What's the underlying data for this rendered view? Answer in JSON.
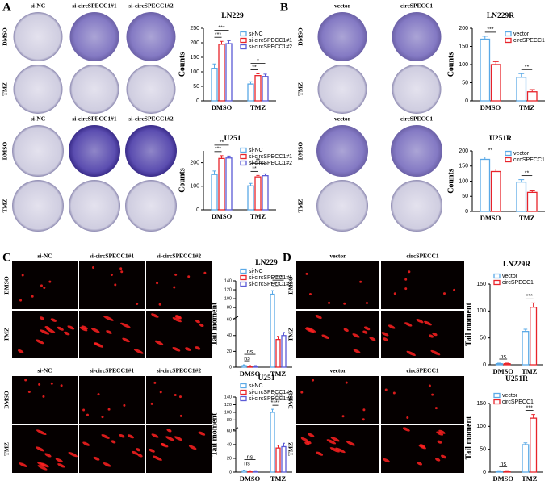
{
  "panels": [
    {
      "label": "A",
      "grids": [
        {
          "columns": [
            "si-NC",
            "si-circSPECC1#1",
            "si-circSPECC1#2"
          ],
          "rows": [
            "DMSO",
            "TMZ"
          ]
        },
        {
          "columns": [
            "si-NC",
            "si-circSPECC1#1",
            "si-circSPECC1#2"
          ],
          "rows": [
            "DMSO",
            "TMZ"
          ]
        }
      ]
    },
    {
      "label": "B",
      "grids": [
        {
          "columns": [
            "vector",
            "circSPECC1"
          ],
          "rows": [
            "DMSO",
            "TMZ"
          ]
        },
        {
          "columns": [
            "vector",
            "circSPECC1"
          ],
          "rows": [
            "DMSO",
            "TMZ"
          ]
        }
      ]
    },
    {
      "label": "C",
      "grids": [
        {
          "columns": [
            "si-NC",
            "si-circSPECC1#1",
            "si-circSPECC1#2"
          ],
          "rows": [
            "DMSO",
            "TMZ"
          ]
        },
        {
          "columns": [
            "si-NC",
            "si-circSPECC1#1",
            "si-circSPECC1#2"
          ],
          "rows": [
            "DMSO",
            "TMZ"
          ]
        }
      ]
    },
    {
      "label": "D",
      "grids": [
        {
          "columns": [
            "vector",
            "circSPECC1"
          ],
          "rows": [
            "DMSO",
            "TMZ"
          ]
        },
        {
          "columns": [
            "vector",
            "circSPECC1"
          ],
          "rows": [
            "DMSO",
            "TMZ"
          ]
        }
      ]
    }
  ],
  "chart_data": [
    {
      "type": "bar",
      "title": "LN229",
      "ylabel": "Counts",
      "categories": [
        "DMSO",
        "TMZ"
      ],
      "series": [
        {
          "name": "si-NC",
          "color": "#5aa9e6",
          "values": [
            112,
            58
          ],
          "errors": [
            15,
            8
          ]
        },
        {
          "name": "si-circSPECC1#1",
          "color": "#e8232a",
          "values": [
            195,
            87
          ],
          "errors": [
            10,
            6
          ]
        },
        {
          "name": "si-circSPECC1#2",
          "color": "#5b5bd6",
          "values": [
            197,
            84
          ],
          "errors": [
            10,
            8
          ]
        }
      ],
      "ylim": [
        0,
        250
      ],
      "yticks": [
        0,
        50,
        100,
        150,
        200,
        250
      ],
      "annotations": [
        "***",
        "***",
        "**",
        "*"
      ]
    },
    {
      "type": "bar",
      "title": "U251",
      "ylabel": "Counts",
      "categories": [
        "DMSO",
        "TMZ"
      ],
      "series": [
        {
          "name": "si-NC",
          "color": "#5aa9e6",
          "values": [
            150,
            102
          ],
          "errors": [
            15,
            10
          ]
        },
        {
          "name": "si-circSPECC1#1",
          "color": "#e8232a",
          "values": [
            218,
            140
          ],
          "errors": [
            12,
            6
          ]
        },
        {
          "name": "si-circSPECC1#2",
          "color": "#5b5bd6",
          "values": [
            220,
            145
          ],
          "errors": [
            8,
            8
          ]
        }
      ],
      "ylim": [
        0,
        250
      ],
      "yticks": [
        0,
        100,
        200
      ],
      "annotations": [
        "***",
        "**",
        "**",
        "**"
      ]
    },
    {
      "type": "bar",
      "title": "LN229R",
      "ylabel": "Counts",
      "categories": [
        "DMSO",
        "TMZ"
      ],
      "series": [
        {
          "name": "vector",
          "color": "#5aa9e6",
          "values": [
            170,
            65
          ],
          "errors": [
            8,
            10
          ]
        },
        {
          "name": "circSPECC1",
          "color": "#e8232a",
          "values": [
            100,
            25
          ],
          "errors": [
            8,
            6
          ]
        }
      ],
      "ylim": [
        0,
        200
      ],
      "yticks": [
        0,
        50,
        100,
        150,
        200
      ],
      "annotations": [
        "***",
        "**"
      ]
    },
    {
      "type": "bar",
      "title": "U251R",
      "ylabel": "Counts",
      "categories": [
        "DMSO",
        "TMZ"
      ],
      "series": [
        {
          "name": "vector",
          "color": "#5aa9e6",
          "values": [
            172,
            97
          ],
          "errors": [
            8,
            8
          ]
        },
        {
          "name": "circSPECC1",
          "color": "#e8232a",
          "values": [
            132,
            63
          ],
          "errors": [
            8,
            5
          ]
        }
      ],
      "ylim": [
        0,
        200
      ],
      "yticks": [
        0,
        50,
        100,
        150,
        200
      ],
      "annotations": [
        "**",
        "**"
      ]
    },
    {
      "type": "bar",
      "title": "LN229",
      "ylabel": "Tail moment",
      "categories": [
        "DMSO",
        "TMZ"
      ],
      "series": [
        {
          "name": "si-NC",
          "color": "#5aa9e6",
          "values": [
            2,
            110
          ],
          "errors": [
            1,
            8
          ]
        },
        {
          "name": "si-circSPECC1#1",
          "color": "#e8232a",
          "values": [
            1,
            35
          ],
          "errors": [
            1,
            4
          ]
        },
        {
          "name": "si-circSPECC1#2",
          "color": "#5b5bd6",
          "values": [
            1,
            40
          ],
          "errors": [
            1,
            4
          ]
        }
      ],
      "ysegments": [
        [
          0,
          60
        ],
        [
          60,
          140
        ]
      ],
      "yticks": [
        0,
        20,
        40,
        60,
        80,
        100,
        120,
        140
      ],
      "annotations": [
        "ns",
        "ns",
        "****",
        "****"
      ]
    },
    {
      "type": "bar",
      "title": "U251",
      "ylabel": "Tail moment",
      "categories": [
        "DMSO",
        "TMZ"
      ],
      "series": [
        {
          "name": "si-NC",
          "color": "#5aa9e6",
          "values": [
            2,
            100
          ],
          "errors": [
            1,
            8
          ]
        },
        {
          "name": "si-circSPECC1#1",
          "color": "#e8232a",
          "values": [
            1,
            35
          ],
          "errors": [
            1,
            4
          ]
        },
        {
          "name": "si-circSPECC1#2",
          "color": "#5b5bd6",
          "values": [
            1,
            37
          ],
          "errors": [
            1,
            5
          ]
        }
      ],
      "ysegments": [
        [
          0,
          60
        ],
        [
          60,
          140
        ]
      ],
      "yticks": [
        0,
        20,
        40,
        60,
        80,
        100,
        120,
        140
      ],
      "annotations": [
        "ns",
        "ns",
        "****",
        "****"
      ]
    },
    {
      "type": "bar",
      "title": "LN229R",
      "ylabel": "Tail moment",
      "categories": [
        "DMSO",
        "TMZ"
      ],
      "series": [
        {
          "name": "vector",
          "color": "#5aa9e6",
          "values": [
            2,
            62
          ],
          "errors": [
            1,
            4
          ]
        },
        {
          "name": "circSPECC1",
          "color": "#e8232a",
          "values": [
            2,
            107
          ],
          "errors": [
            1,
            8
          ]
        }
      ],
      "ylim": [
        0,
        150
      ],
      "yticks": [
        0,
        50,
        100,
        150
      ],
      "annotations": [
        "ns",
        "***"
      ]
    },
    {
      "type": "bar",
      "title": "U251R",
      "ylabel": "Tail moment",
      "categories": [
        "DMSO",
        "TMZ"
      ],
      "series": [
        {
          "name": "vector",
          "color": "#5aa9e6",
          "values": [
            2,
            60
          ],
          "errors": [
            1,
            4
          ]
        },
        {
          "name": "circSPECC1",
          "color": "#e8232a",
          "values": [
            2,
            118
          ],
          "errors": [
            1,
            8
          ]
        }
      ],
      "ylim": [
        0,
        150
      ],
      "yticks": [
        0,
        50,
        100,
        150
      ],
      "annotations": [
        "ns",
        "***"
      ]
    }
  ]
}
